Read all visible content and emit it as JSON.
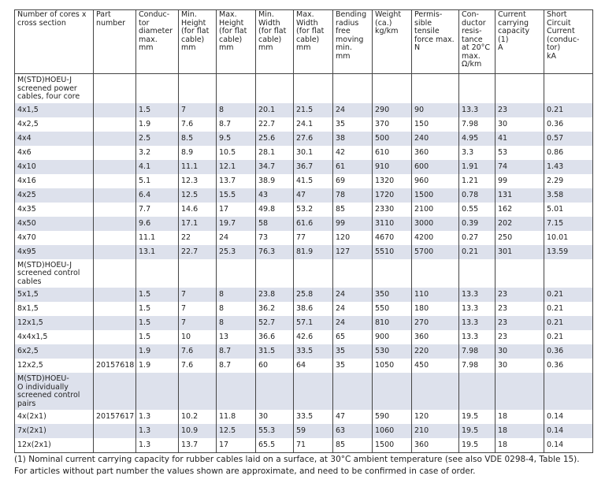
{
  "table": {
    "header": [
      "Number of cores x\ncross section",
      "Part\nnumber",
      "Conduc-\ntor\ndiameter\nmax.\nmm",
      "Min.\nHeight\n(for flat\ncable)\nmm",
      "Max.\nHeight\n(for flat\ncable)\nmm",
      "Min.\nWidth\n(for flat\ncable)\nmm",
      "Max.\nWidth\n(for flat\ncable)\nmm",
      "Bending\nradius\nfree\nmoving\nmin.\nmm",
      "Weight\n(ca.)\nkg/km",
      "Permis-\nsible\ntensile\nforce max.\nN",
      "Con-\nductor\nresis-\ntance\nat 20°C\nmax.\nΩ/km",
      "Current\ncarrying\ncapacity\n(1)\nA",
      "Short\nCircuit\nCurrent\n(conduc-\ntor)\nkA"
    ],
    "rows": [
      {
        "section": "M(STD)HOEU-J\nscreened power\ncables, four core"
      },
      {
        "cells": [
          "4x1,5",
          null,
          "1.5",
          "7",
          "8",
          "20.1",
          "21.5",
          "24",
          "290",
          "90",
          "13.3",
          "23",
          "0.21"
        ]
      },
      {
        "cells": [
          "4x2,5",
          null,
          "1.9",
          "7.6",
          "8.7",
          "22.7",
          "24.1",
          "35",
          "370",
          "150",
          "7.98",
          "30",
          "0.36"
        ]
      },
      {
        "cells": [
          "4x4",
          null,
          "2.5",
          "8.5",
          "9.5",
          "25.6",
          "27.6",
          "38",
          "500",
          "240",
          "4.95",
          "41",
          "0.57"
        ]
      },
      {
        "cells": [
          "4x6",
          null,
          "3.2",
          "8.9",
          "10.5",
          "28.1",
          "30.1",
          "42",
          "610",
          "360",
          "3.3",
          "53",
          "0.86"
        ]
      },
      {
        "cells": [
          "4x10",
          null,
          "4.1",
          "11.1",
          "12.1",
          "34.7",
          "36.7",
          "61",
          "910",
          "600",
          "1.91",
          "74",
          "1.43"
        ]
      },
      {
        "cells": [
          "4x16",
          null,
          "5.1",
          "12.3",
          "13.7",
          "38.9",
          "41.5",
          "69",
          "1320",
          "960",
          "1.21",
          "99",
          "2.29"
        ]
      },
      {
        "cells": [
          "4x25",
          null,
          "6.4",
          "12.5",
          "15.5",
          "43",
          "47",
          "78",
          "1720",
          "1500",
          "0.78",
          "131",
          "3.58"
        ]
      },
      {
        "cells": [
          "4x35",
          null,
          "7.7",
          "14.6",
          "17",
          "49.8",
          "53.2",
          "85",
          "2330",
          "2100",
          "0.55",
          "162",
          "5.01"
        ]
      },
      {
        "cells": [
          "4x50",
          null,
          "9.6",
          "17.1",
          "19.7",
          "58",
          "61.6",
          "99",
          "3110",
          "3000",
          "0.39",
          "202",
          "7.15"
        ]
      },
      {
        "cells": [
          "4x70",
          null,
          "11.1",
          "22",
          "24",
          "73",
          "77",
          "120",
          "4670",
          "4200",
          "0.27",
          "250",
          "10.01"
        ]
      },
      {
        "cells": [
          "4x95",
          null,
          "13.1",
          "22.7",
          "25.3",
          "76.3",
          "81.9",
          "127",
          "5510",
          "5700",
          "0.21",
          "301",
          "13.59"
        ]
      },
      {
        "section": "M(STD)HOEU-J\nscreened control\ncables"
      },
      {
        "cells": [
          "5x1,5",
          null,
          "1.5",
          "7",
          "8",
          "23.8",
          "25.8",
          "24",
          "350",
          "110",
          "13.3",
          "23",
          "0.21"
        ]
      },
      {
        "cells": [
          "8x1,5",
          null,
          "1.5",
          "7",
          "8",
          "36.2",
          "38.6",
          "24",
          "550",
          "180",
          "13.3",
          "23",
          "0.21"
        ]
      },
      {
        "cells": [
          "12x1,5",
          null,
          "1.5",
          "7",
          "8",
          "52.7",
          "57.1",
          "24",
          "810",
          "270",
          "13.3",
          "23",
          "0.21"
        ]
      },
      {
        "cells": [
          "4x4x1,5",
          null,
          "1.5",
          "10",
          "13",
          "36.6",
          "42.6",
          "65",
          "900",
          "360",
          "13.3",
          "23",
          "0.21"
        ]
      },
      {
        "cells": [
          "6x2,5",
          null,
          "1.9",
          "7.6",
          "8.7",
          "31.5",
          "33.5",
          "35",
          "530",
          "220",
          "7.98",
          "30",
          "0.36"
        ]
      },
      {
        "cells": [
          "12x2,5",
          "20157618",
          "1.9",
          "7.6",
          "8.7",
          "60",
          "64",
          "35",
          "1050",
          "450",
          "7.98",
          "30",
          "0.36"
        ]
      },
      {
        "section": "M(STD)HOEU-\nO individually\nscreened control\npairs"
      },
      {
        "cells": [
          "4x(2x1)",
          "20157617",
          "1.3",
          "10.2",
          "11.8",
          "30",
          "33.5",
          "47",
          "590",
          "120",
          "19.5",
          "18",
          "0.14"
        ]
      },
      {
        "cells": [
          "7x(2x1)",
          null,
          "1.3",
          "10.9",
          "12.5",
          "55.3",
          "59",
          "63",
          "1060",
          "210",
          "19.5",
          "18",
          "0.14"
        ]
      },
      {
        "cells": [
          "12x(2x1)",
          null,
          "1.3",
          "13.7",
          "17",
          "65.5",
          "71",
          "85",
          "1500",
          "360",
          "19.5",
          "18",
          "0.14"
        ]
      }
    ]
  },
  "footnotes": [
    "(1) Nominal current carrying capacity for rubber cables laid on a surface, at 30°C ambient temperature (see also VDE 0298-4, Table 15).",
    "For articles without part number the values shown are approximate, and need to be confirmed in case of order."
  ]
}
